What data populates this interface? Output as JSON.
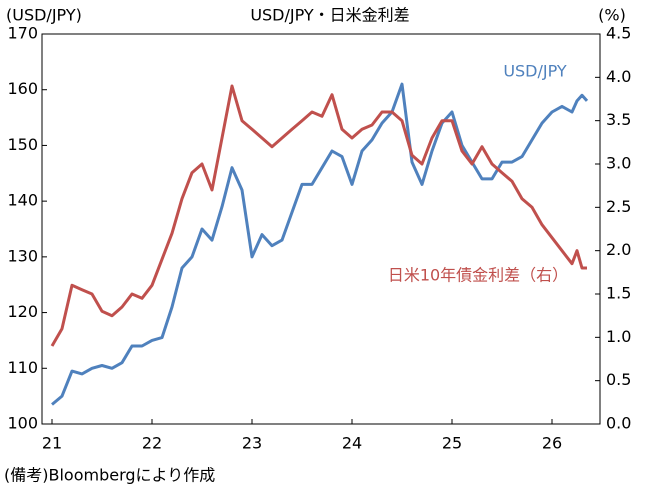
{
  "chart_data": {
    "type": "line",
    "title": "USD/JPY・日米金利差",
    "y_label": "(USD/JPY)",
    "y2_label": "(%)",
    "note": "(備考)Bloombergにより作成",
    "x": [
      21.0,
      21.1,
      21.2,
      21.3,
      21.4,
      21.5,
      21.6,
      21.7,
      21.8,
      21.9,
      22.0,
      22.1,
      22.2,
      22.3,
      22.4,
      22.5,
      22.6,
      22.7,
      22.8,
      22.9,
      23.0,
      23.1,
      23.2,
      23.3,
      23.4,
      23.5,
      23.6,
      23.7,
      23.8,
      23.9,
      24.0,
      24.1,
      24.2,
      24.3,
      24.4,
      24.5,
      24.6,
      24.7,
      24.8,
      24.9,
      25.0,
      25.1,
      25.2,
      25.3,
      25.4,
      25.5,
      25.6,
      25.7,
      25.8,
      25.9,
      26.0,
      26.1,
      26.2,
      26.25,
      26.3,
      26.35
    ],
    "series": [
      {
        "name": "USD/JPY",
        "color": "#4f81bd",
        "axis": "y",
        "values": [
          103.5,
          105,
          109.5,
          109,
          110,
          110.5,
          110,
          111,
          114,
          114,
          115,
          115.5,
          121,
          128,
          130,
          135,
          133,
          139,
          146,
          142,
          130,
          134,
          132,
          133,
          138,
          143,
          143,
          146,
          149,
          148,
          143,
          149,
          151,
          154,
          156,
          161,
          147,
          143,
          149,
          154,
          156,
          150,
          147,
          144,
          144,
          147,
          147,
          148,
          151,
          154,
          156,
          157,
          156,
          158,
          159,
          158
        ]
      },
      {
        "name": "日米10年債金利差（右）",
        "color": "#c0504d",
        "axis": "y2",
        "values": [
          0.9,
          1.1,
          1.6,
          1.55,
          1.5,
          1.3,
          1.25,
          1.35,
          1.5,
          1.45,
          1.6,
          1.9,
          2.2,
          2.6,
          2.9,
          3.0,
          2.7,
          3.3,
          3.9,
          3.5,
          3.4,
          3.3,
          3.2,
          3.3,
          3.4,
          3.5,
          3.6,
          3.55,
          3.8,
          3.4,
          3.3,
          3.4,
          3.45,
          3.6,
          3.6,
          3.5,
          3.1,
          3.0,
          3.3,
          3.5,
          3.5,
          3.15,
          3.0,
          3.2,
          3.0,
          2.9,
          2.8,
          2.6,
          2.5,
          2.3,
          2.15,
          2.0,
          1.85,
          2.0,
          1.8,
          1.8
        ]
      }
    ],
    "xlim": [
      20.9,
      26.48
    ],
    "xticks": [
      21,
      22,
      23,
      24,
      25,
      26
    ],
    "ylim": [
      100,
      170
    ],
    "yticks": [
      100,
      110,
      120,
      130,
      140,
      150,
      160,
      170
    ],
    "y2lim": [
      0,
      4.5
    ],
    "y2ticks": [
      {
        "value": 0,
        "label": "0.0"
      },
      0.5,
      {
        "value": 1,
        "label": "1.0"
      },
      1.5,
      {
        "value": 2,
        "label": "2.0"
      },
      2.5,
      {
        "value": 3,
        "label": "3.0"
      },
      3.5,
      {
        "value": 4,
        "label": "4.0"
      },
      4.5
    ]
  }
}
